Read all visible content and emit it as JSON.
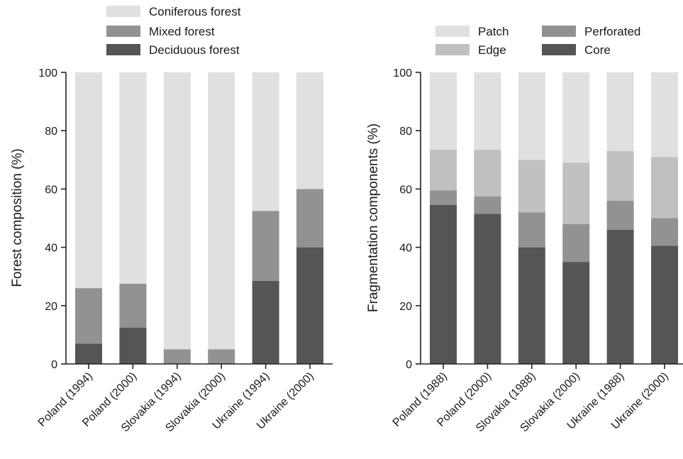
{
  "chart_data": [
    {
      "type": "bar",
      "stacked": true,
      "ylabel": "Forest composition (%)",
      "xlabel": "",
      "ylim": [
        0,
        100
      ],
      "yticks": [
        0,
        20,
        40,
        60,
        80,
        100
      ],
      "categories": [
        "Poland (1994)",
        "Poland (2000)",
        "Slovakia (1994)",
        "Slovakia (2000)",
        "Ukraine (1994)",
        "Ukraine (2000)"
      ],
      "legend_position": "top-left",
      "series": [
        {
          "name": "Deciduous forest",
          "color": "#555555",
          "values": [
            7,
            12.5,
            0,
            0,
            28.5,
            40
          ]
        },
        {
          "name": "Mixed forest",
          "color": "#929292",
          "values": [
            19,
            15,
            5,
            5,
            24,
            20
          ]
        },
        {
          "name": "Coniferous forest",
          "color": "#e0e0e0",
          "values": [
            74,
            72.5,
            95,
            95,
            47.5,
            40
          ]
        }
      ],
      "legend_order": [
        "Coniferous forest",
        "Mixed forest",
        "Deciduous forest"
      ]
    },
    {
      "type": "bar",
      "stacked": true,
      "ylabel": "Fragmentation components (%)",
      "xlabel": "",
      "ylim": [
        0,
        100
      ],
      "yticks": [
        0,
        20,
        40,
        60,
        80,
        100
      ],
      "categories": [
        "Poland (1988)",
        "Poland (2000)",
        "Slovakia (1988)",
        "Slovakia (2000)",
        "Ukraine (1988)",
        "Ukraine (2000)"
      ],
      "legend_position": "top-right",
      "series": [
        {
          "name": "Core",
          "color": "#555555",
          "values": [
            54.5,
            51.5,
            40,
            35,
            46,
            40.5
          ]
        },
        {
          "name": "Perforated",
          "color": "#929292",
          "values": [
            5,
            6,
            12,
            13,
            10,
            9.5
          ]
        },
        {
          "name": "Edge",
          "color": "#c0c0c0",
          "values": [
            14,
            16,
            18,
            21,
            17,
            21
          ]
        },
        {
          "name": "Patch",
          "color": "#e0e0e0",
          "values": [
            26.5,
            26.5,
            30,
            31,
            27,
            29
          ]
        }
      ],
      "legend_order": [
        "Patch",
        "Perforated",
        "Edge",
        "Core"
      ]
    }
  ]
}
